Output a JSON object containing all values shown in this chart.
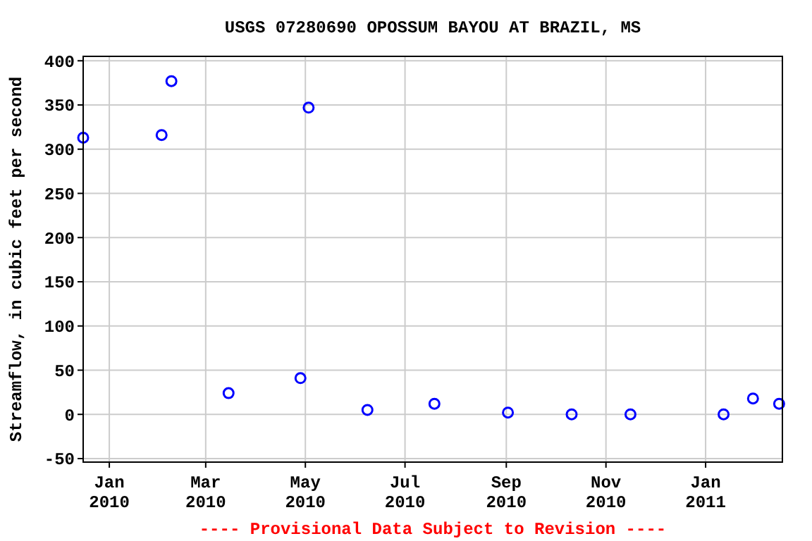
{
  "chart_data": {
    "type": "scatter",
    "title": "USGS 07280690 OPOSSUM BAYOU AT BRAZIL, MS",
    "ylabel": "Streamflow, in cubic feet per second",
    "annotations": [
      "---- Provisional Data Subject to Revision ----"
    ],
    "series": [
      {
        "color": "#0000ff",
        "x": [
          "2009-12-16",
          "2010-02-02",
          "2010-02-08",
          "2010-03-15",
          "2010-04-28",
          "2010-05-03",
          "2010-06-08",
          "2010-07-19",
          "2010-09-02",
          "2010-10-11",
          "2010-11-16",
          "2011-01-12",
          "2011-01-30",
          "2011-02-15"
        ],
        "values": [
          313,
          316,
          377,
          24,
          41,
          347,
          5,
          12,
          2,
          0,
          0,
          0,
          18,
          12
        ]
      }
    ],
    "xlim": [
      "2009-12-16",
      "2011-02-17"
    ],
    "xticks": [
      {
        "value": "2010-01-01",
        "label": "Jan\n2010"
      },
      {
        "value": "2010-03-01",
        "label": "Mar\n2010"
      },
      {
        "value": "2010-05-01",
        "label": "May\n2010"
      },
      {
        "value": "2010-07-01",
        "label": "Jul\n2010"
      },
      {
        "value": "2010-09-01",
        "label": "Sep\n2010"
      },
      {
        "value": "2010-11-01",
        "label": "Nov\n2010"
      },
      {
        "value": "2011-01-01",
        "label": "Jan\n2011"
      }
    ],
    "ylim": [
      -54,
      405
    ],
    "yticks": [
      -50,
      0,
      50,
      100,
      150,
      200,
      250,
      300,
      350,
      400
    ],
    "grid": true,
    "marker": "circle"
  }
}
